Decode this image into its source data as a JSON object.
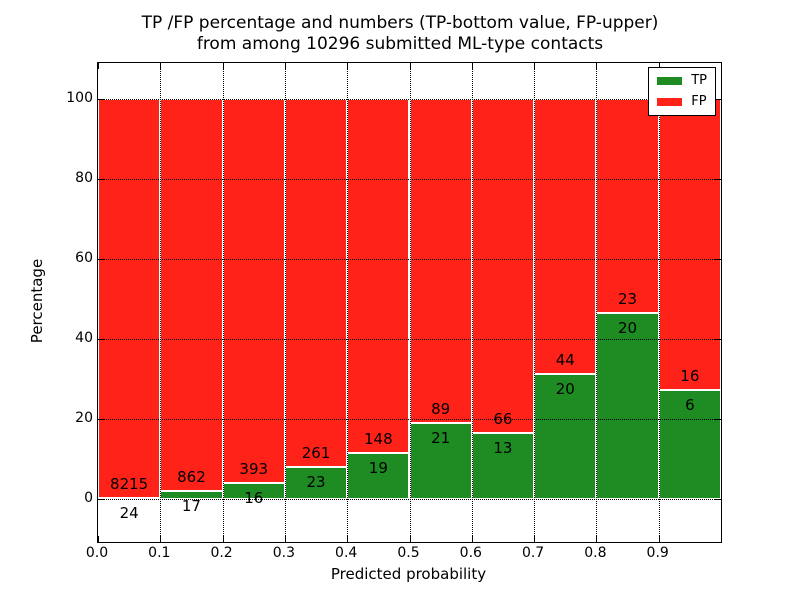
{
  "title": {
    "line1": "TP /FP percentage and numbers (TP-bottom value, FP-upper)",
    "line2": "from among 10296 submitted ML-type contacts"
  },
  "legend": [
    {
      "label": "TP",
      "color": "#1e8b23"
    },
    {
      "label": "FP",
      "color": "#fe2218"
    }
  ],
  "chart_data": {
    "type": "bar",
    "stacked": true,
    "normalized": "each bin scaled to 100%",
    "title": "TP /FP percentage and numbers (TP-bottom value, FP-upper) from among 10296 submitted ML-type contacts",
    "total_contacts": 10296,
    "xlabel": "Predicted probability",
    "ylabel": "Percentage",
    "xlim": [
      0.0,
      1.0
    ],
    "ylim": [
      -10.75,
      109
    ],
    "xticks": [
      "0.0",
      "0.1",
      "0.2",
      "0.3",
      "0.4",
      "0.5",
      "0.6",
      "0.7",
      "0.8",
      "0.9"
    ],
    "yticks": [
      0,
      20,
      40,
      60,
      80,
      100
    ],
    "grid": "dotted",
    "legend_position": "upper right",
    "bin_edges": [
      0.0,
      0.1,
      0.2,
      0.3,
      0.4,
      0.5,
      0.6,
      0.7,
      0.8,
      0.9,
      1.0
    ],
    "series": [
      {
        "name": "TP",
        "color": "#1e8b23",
        "counts": [
          24,
          17,
          16,
          23,
          19,
          21,
          13,
          20,
          20,
          6
        ],
        "pct": [
          0.29,
          1.93,
          3.91,
          8.1,
          11.38,
          19.09,
          16.46,
          31.25,
          46.51,
          27.27
        ]
      },
      {
        "name": "FP",
        "color": "#fe2218",
        "counts": [
          8215,
          862,
          393,
          261,
          148,
          89,
          66,
          44,
          23,
          16
        ],
        "pct": [
          99.71,
          98.07,
          96.09,
          91.9,
          88.62,
          80.91,
          83.54,
          68.75,
          53.49,
          72.73
        ]
      }
    ]
  }
}
